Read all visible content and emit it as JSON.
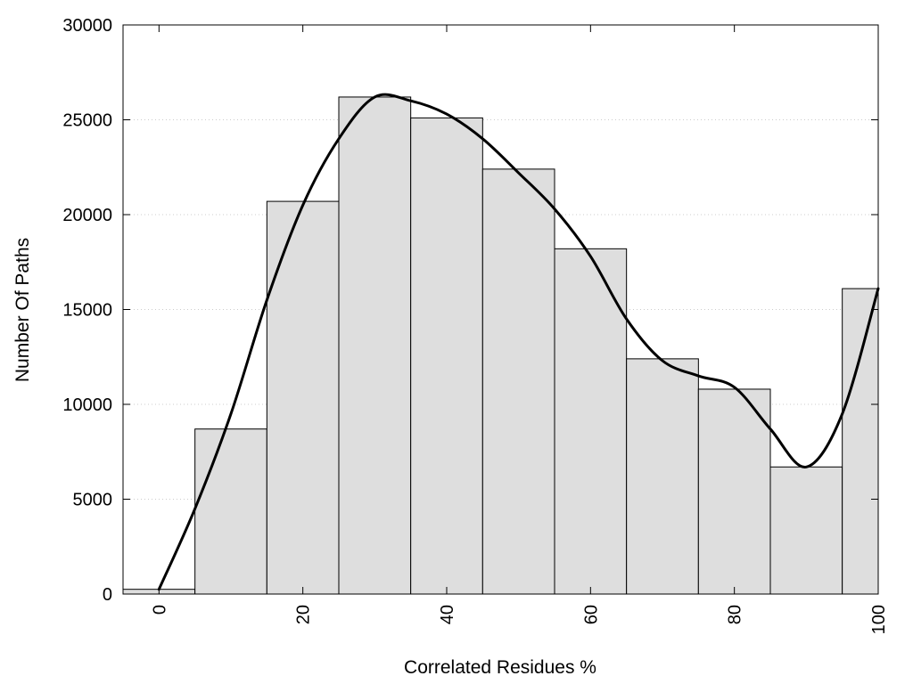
{
  "chart_data": {
    "type": "bar",
    "title": "",
    "xlabel": "Correlated Residues %",
    "ylabel": "Number Of Paths",
    "ylim": [
      0,
      30000
    ],
    "xlim": [
      -5,
      100
    ],
    "grid": {
      "y": true,
      "x": false
    },
    "yticks": [
      0,
      5000,
      10000,
      15000,
      20000,
      25000,
      30000
    ],
    "xticks": [
      0,
      20,
      40,
      60,
      80,
      100
    ],
    "colors": {
      "bar_fill": "#dedede",
      "bar_stroke": "#000000",
      "curve": "#000000",
      "grid": "#cccccc"
    },
    "bins": [
      {
        "start": -5,
        "end": 5,
        "value": 250
      },
      {
        "start": 5,
        "end": 15,
        "value": 8700
      },
      {
        "start": 15,
        "end": 25,
        "value": 20700
      },
      {
        "start": 25,
        "end": 35,
        "value": 26200
      },
      {
        "start": 35,
        "end": 45,
        "value": 25100
      },
      {
        "start": 45,
        "end": 55,
        "value": 22400
      },
      {
        "start": 55,
        "end": 65,
        "value": 18200
      },
      {
        "start": 65,
        "end": 75,
        "value": 12400
      },
      {
        "start": 75,
        "end": 85,
        "value": 10800
      },
      {
        "start": 85,
        "end": 95,
        "value": 6700
      },
      {
        "start": 95,
        "end": 100,
        "value": 16100
      }
    ],
    "curve": [
      {
        "x": 0,
        "y": 250
      },
      {
        "x": 5,
        "y": 4500
      },
      {
        "x": 10,
        "y": 9500
      },
      {
        "x": 15,
        "y": 15500
      },
      {
        "x": 20,
        "y": 20500
      },
      {
        "x": 25,
        "y": 24000
      },
      {
        "x": 30,
        "y": 26200
      },
      {
        "x": 35,
        "y": 26000
      },
      {
        "x": 40,
        "y": 25300
      },
      {
        "x": 45,
        "y": 24000
      },
      {
        "x": 50,
        "y": 22200
      },
      {
        "x": 55,
        "y": 20300
      },
      {
        "x": 60,
        "y": 17800
      },
      {
        "x": 65,
        "y": 14500
      },
      {
        "x": 70,
        "y": 12300
      },
      {
        "x": 75,
        "y": 11500
      },
      {
        "x": 80,
        "y": 10900
      },
      {
        "x": 85,
        "y": 8700
      },
      {
        "x": 90,
        "y": 6700
      },
      {
        "x": 95,
        "y": 9500
      },
      {
        "x": 100,
        "y": 16100
      }
    ]
  }
}
